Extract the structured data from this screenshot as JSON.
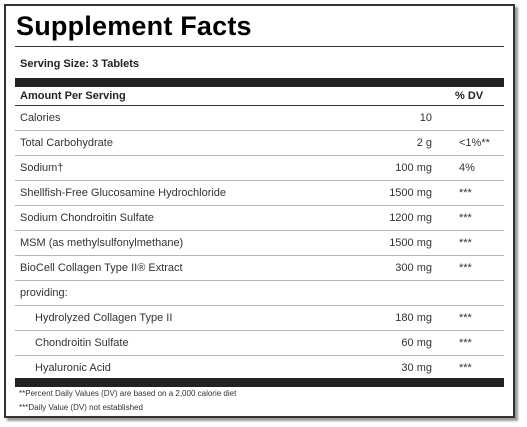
{
  "title": "Supplement Facts",
  "serving_size": "Serving Size: 3 Tablets",
  "header": {
    "amount": "Amount Per Serving",
    "dv": "% DV"
  },
  "rows": [
    {
      "name": "Calories",
      "amount": "10",
      "dv": ""
    },
    {
      "name": "Total Carbohydrate",
      "amount": "2 g",
      "dv": "<1%**"
    },
    {
      "name": "Sodium†",
      "amount": "100 mg",
      "dv": "4%"
    },
    {
      "name": "Shellfish-Free Glucosamine Hydrochloride",
      "amount": "1500 mg",
      "dv": "***"
    },
    {
      "name": "Sodium Chondroitin Sulfate",
      "amount": "1200 mg",
      "dv": "***"
    },
    {
      "name": "MSM (as methylsulfonylmethane)",
      "amount": "1500 mg",
      "dv": "***"
    },
    {
      "name": "BioCell Collagen Type II® Extract",
      "amount": "300 mg",
      "dv": "***"
    },
    {
      "name": "providing:",
      "amount": "",
      "dv": ""
    },
    {
      "name": "Hydrolyzed Collagen Type II",
      "amount": "180 mg",
      "dv": "***",
      "indent": true
    },
    {
      "name": "Chondroitin Sulfate",
      "amount": "60 mg",
      "dv": "***",
      "indent": true
    },
    {
      "name": "Hyaluronic Acid",
      "amount": "30 mg",
      "dv": "***",
      "indent": true
    }
  ],
  "footnotes": [
    "**Percent Daily Values (DV) are based on a 2,000 calorie diet",
    "***Daily Value (DV) not established"
  ]
}
